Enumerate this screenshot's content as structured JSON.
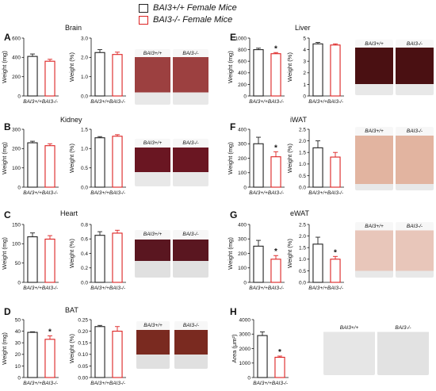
{
  "legend": {
    "items": [
      {
        "label": "BAI3+/+ Female Mice",
        "color": "#222222"
      },
      {
        "label": "BAI3-/- Female Mice",
        "color": "#dd2222"
      }
    ]
  },
  "colors": {
    "wt": "#222222",
    "ko": "#dd2222"
  },
  "genotype_labels": [
    "BAI3+/+",
    "BAI3-/-"
  ],
  "panels": [
    {
      "letter": "A",
      "title": "Brain",
      "photo_labels": [
        "BAI3+/+",
        "BAI3-/-"
      ],
      "photo_type": "organ-pair"
    },
    {
      "letter": "B",
      "title": "Kidney",
      "photo_labels": [
        "BAI3+/+",
        "BAI3-/-"
      ],
      "photo_type": "organ-pair"
    },
    {
      "letter": "C",
      "title": "Heart",
      "photo_labels": [
        "BAI3+/+",
        "BAI3-/-"
      ],
      "photo_type": "organ-pair"
    },
    {
      "letter": "D",
      "title": "BAT",
      "photo_labels": [
        "BAI3+/+",
        "BAI3-/-"
      ],
      "photo_type": "organ-pair"
    },
    {
      "letter": "E",
      "title": "Liver",
      "photo_labels": [
        "BAI3+/+",
        "BAI3-/-"
      ],
      "photo_type": "organ-pair"
    },
    {
      "letter": "F",
      "title": "iWAT",
      "photo_labels": [
        "BAI3+/+",
        "BAI3-/-"
      ],
      "photo_type": "organ-pair"
    },
    {
      "letter": "G",
      "title": "eWAT",
      "photo_labels": [
        "BAI3+/+",
        "BAI3-/-"
      ],
      "photo_type": "organ-pair"
    },
    {
      "letter": "H",
      "title": "",
      "photo_labels": [
        "BAI3+/+",
        "BAI3-/-"
      ],
      "photo_type": "histology"
    }
  ],
  "chart_data": [
    {
      "id": "A1",
      "type": "bar",
      "ylabel": "Weight (mg)",
      "ylim": [
        0,
        600
      ],
      "yticks": [
        "0",
        "200",
        "400",
        "600"
      ],
      "categories": [
        "BAI3+/+",
        "BAI3-/-"
      ],
      "values": [
        410,
        360
      ],
      "errors": [
        25,
        20
      ],
      "significance": []
    },
    {
      "id": "A2",
      "type": "bar",
      "ylabel": "Weight (%)",
      "ylim": [
        0,
        3.0
      ],
      "yticks": [
        "0.0",
        "1.0",
        "2.0",
        "3.0"
      ],
      "categories": [
        "BAI3+/+",
        "BAI3-/-"
      ],
      "values": [
        2.25,
        2.15
      ],
      "errors": [
        0.15,
        0.12
      ],
      "significance": []
    },
    {
      "id": "B1",
      "type": "bar",
      "ylabel": "Weight (mg)",
      "ylim": [
        0,
        300
      ],
      "yticks": [
        "0",
        "100",
        "200",
        "300"
      ],
      "categories": [
        "BAI3+/+",
        "BAI3-/-"
      ],
      "values": [
        230,
        215
      ],
      "errors": [
        8,
        10
      ],
      "significance": []
    },
    {
      "id": "B2",
      "type": "bar",
      "ylabel": "Weight (%)",
      "ylim": [
        0,
        1.5
      ],
      "yticks": [
        "0.0",
        "0.5",
        "1.0",
        "1.5"
      ],
      "categories": [
        "BAI3+/+",
        "BAI3-/-"
      ],
      "values": [
        1.28,
        1.32
      ],
      "errors": [
        0.03,
        0.04
      ],
      "significance": []
    },
    {
      "id": "C1",
      "type": "bar",
      "ylabel": "Weight (mg)",
      "ylim": [
        0,
        150
      ],
      "yticks": [
        "0",
        "50",
        "100",
        "150"
      ],
      "categories": [
        "BAI3+/+",
        "BAI3-/-"
      ],
      "values": [
        118,
        112
      ],
      "errors": [
        10,
        9
      ],
      "significance": []
    },
    {
      "id": "C2",
      "type": "bar",
      "ylabel": "Weight (%)",
      "ylim": [
        0,
        0.8
      ],
      "yticks": [
        "0.0",
        "0.2",
        "0.4",
        "0.6",
        "0.8"
      ],
      "categories": [
        "BAI3+/+",
        "BAI3-/-"
      ],
      "values": [
        0.65,
        0.68
      ],
      "errors": [
        0.05,
        0.04
      ],
      "significance": []
    },
    {
      "id": "D1",
      "type": "bar",
      "ylabel": "Weight (mg)",
      "ylim": [
        0,
        50
      ],
      "yticks": [
        "0",
        "10",
        "20",
        "30",
        "40",
        "50"
      ],
      "categories": [
        "BAI3+/+",
        "BAI3-/-"
      ],
      "values": [
        39,
        33
      ],
      "errors": [
        0.5,
        3
      ],
      "significance": [
        "",
        "*"
      ]
    },
    {
      "id": "D2",
      "type": "bar",
      "ylabel": "Weight (%)",
      "ylim": [
        0,
        0.25
      ],
      "yticks": [
        "0.00",
        "0.05",
        "0.10",
        "0.15",
        "0.20",
        "0.25"
      ],
      "categories": [
        "BAI3+/+",
        "BAI3-/-"
      ],
      "values": [
        0.22,
        0.2
      ],
      "errors": [
        0.005,
        0.02
      ],
      "significance": []
    },
    {
      "id": "E1",
      "type": "bar",
      "ylabel": "Weight (mg)",
      "ylim": [
        0,
        1000
      ],
      "yticks": [
        "0",
        "200",
        "400",
        "600",
        "800",
        "1000"
      ],
      "categories": [
        "BAI3+/+",
        "BAI3-/-"
      ],
      "values": [
        800,
        730
      ],
      "errors": [
        25,
        20
      ],
      "significance": [
        "",
        "*"
      ]
    },
    {
      "id": "E2",
      "type": "bar",
      "ylabel": "Weight (%)",
      "ylim": [
        0,
        5
      ],
      "yticks": [
        "0",
        "1",
        "2",
        "3",
        "4",
        "5"
      ],
      "categories": [
        "BAI3+/+",
        "BAI3-/-"
      ],
      "values": [
        4.5,
        4.4
      ],
      "errors": [
        0.12,
        0.1
      ],
      "significance": []
    },
    {
      "id": "F1",
      "type": "bar",
      "ylabel": "Weight (mg)",
      "ylim": [
        0,
        400
      ],
      "yticks": [
        "0",
        "100",
        "200",
        "300",
        "400"
      ],
      "categories": [
        "BAI3+/+",
        "BAI3-/-"
      ],
      "values": [
        300,
        210
      ],
      "errors": [
        45,
        35
      ],
      "significance": [
        "",
        "*"
      ]
    },
    {
      "id": "F2",
      "type": "bar",
      "ylabel": "Weight (%)",
      "ylim": [
        0,
        2.5
      ],
      "yticks": [
        "0.0",
        "0.5",
        "1.0",
        "1.5",
        "2.0",
        "2.5"
      ],
      "categories": [
        "BAI3+/+",
        "BAI3-/-"
      ],
      "values": [
        1.7,
        1.3
      ],
      "errors": [
        0.3,
        0.2
      ],
      "significance": []
    },
    {
      "id": "G1",
      "type": "bar",
      "ylabel": "Weight (mg)",
      "ylim": [
        0,
        400
      ],
      "yticks": [
        "0",
        "100",
        "200",
        "300",
        "400"
      ],
      "categories": [
        "BAI3+/+",
        "BAI3-/-"
      ],
      "values": [
        250,
        160
      ],
      "errors": [
        40,
        25
      ],
      "significance": [
        "",
        "*"
      ]
    },
    {
      "id": "G2",
      "type": "bar",
      "ylabel": "Weight (%)",
      "ylim": [
        0,
        2.5
      ],
      "yticks": [
        "0.0",
        "0.5",
        "1.0",
        "1.5",
        "2.0",
        "2.5"
      ],
      "categories": [
        "BAI3+/+",
        "BAI3-/-"
      ],
      "values": [
        1.65,
        1.0
      ],
      "errors": [
        0.3,
        0.12
      ],
      "significance": [
        "",
        "*"
      ]
    },
    {
      "id": "H1",
      "type": "bar",
      "ylabel": "Area (μm²)",
      "ylim": [
        0,
        4000
      ],
      "yticks": [
        "0",
        "1000",
        "2000",
        "3000",
        "4000"
      ],
      "categories": [
        "BAI3+/+",
        "BAI3-/-"
      ],
      "values": [
        2900,
        1400
      ],
      "errors": [
        250,
        80
      ],
      "significance": [
        "",
        "*"
      ]
    }
  ]
}
